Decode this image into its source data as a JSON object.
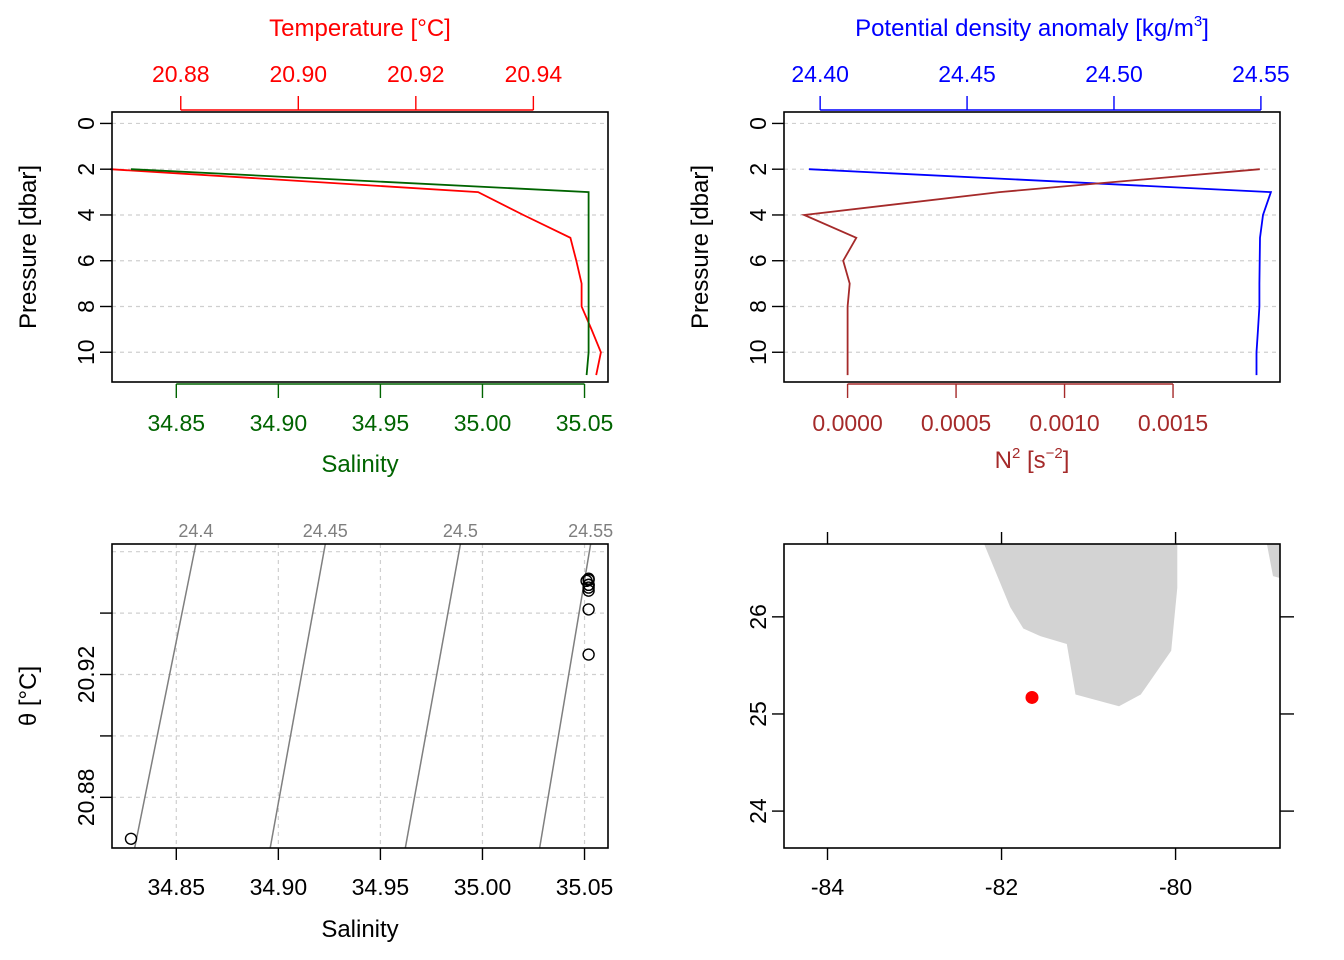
{
  "colors": {
    "temperature": "#ff0000",
    "salinity": "#006400",
    "density": "#0000ff",
    "n2": "#a52a2a",
    "isopycnal": "#7f7f7f",
    "land": "#d3d3d3",
    "station": "#ff0000"
  },
  "chart_data": [
    {
      "type": "line",
      "id": "temperature-salinity-profile",
      "ylabel": "Pressure [dbar]",
      "y_ticks": [
        "0",
        "2",
        "4",
        "6",
        "8",
        "10"
      ],
      "ylim": [
        11.3,
        -0.5
      ],
      "top_axis": {
        "label": "Temperature [°C]",
        "ticks": [
          "20.88",
          "20.90",
          "20.92",
          "20.94"
        ],
        "lim": [
          20.8683,
          20.9527
        ]
      },
      "bottom_axis": {
        "label": "Salinity",
        "ticks": [
          "34.85",
          "34.90",
          "34.95",
          "35.00",
          "35.05"
        ],
        "lim": [
          34.8185,
          35.0615
        ]
      },
      "series": [
        {
          "variable": "temperature",
          "axis": "top",
          "points": [
            [
              20.868,
              2.0
            ],
            [
              20.9306,
              3.0
            ],
            [
              20.9383,
              4.0
            ],
            [
              20.9463,
              5.0
            ],
            [
              20.9473,
              6.0
            ],
            [
              20.9482,
              7.0
            ],
            [
              20.9482,
              8.0
            ],
            [
              20.9499,
              9.0
            ],
            [
              20.9515,
              10.0
            ],
            [
              20.9507,
              11.0
            ]
          ]
        },
        {
          "variable": "salinity",
          "axis": "bottom",
          "points": [
            [
              34.8278,
              2.0
            ],
            [
              35.052,
              3.0
            ],
            [
              35.052,
              4.0
            ],
            [
              35.052,
              5.0
            ],
            [
              35.052,
              6.0
            ],
            [
              35.052,
              7.0
            ],
            [
              35.052,
              8.0
            ],
            [
              35.052,
              9.0
            ],
            [
              35.052,
              10.0
            ],
            [
              35.051,
              11.0
            ]
          ]
        }
      ]
    },
    {
      "type": "line",
      "id": "density-n2-profile",
      "ylabel": "Pressure [dbar]",
      "y_ticks": [
        "0",
        "2",
        "4",
        "6",
        "8",
        "10"
      ],
      "ylim": [
        11.3,
        -0.5
      ],
      "top_axis": {
        "label_main": "Potential density anomaly [kg/m",
        "label_sup": "3",
        "label_end": "]",
        "ticks": [
          "24.40",
          "24.45",
          "24.50",
          "24.55"
        ],
        "lim": [
          24.3877,
          24.5565
        ]
      },
      "bottom_axis": {
        "label_main": "N",
        "label_sup1": "2",
        "label_mid": " [s",
        "label_sup2": "−2",
        "label_end": "]",
        "ticks": [
          "0.0000",
          "0.0005",
          "0.0010",
          "0.0015"
        ],
        "lim": [
          -0.000293,
          0.001993
        ]
      },
      "series": [
        {
          "variable": "density",
          "axis": "top",
          "points": [
            [
              24.3962,
              2.0
            ],
            [
              24.5534,
              3.0
            ],
            [
              24.5507,
              4.0
            ],
            [
              24.5497,
              5.0
            ],
            [
              24.5496,
              6.0
            ],
            [
              24.5495,
              7.0
            ],
            [
              24.5495,
              8.0
            ],
            [
              24.549,
              9.0
            ],
            [
              24.5485,
              10.0
            ],
            [
              24.5485,
              11.0
            ]
          ]
        },
        {
          "variable": "N2",
          "axis": "bottom",
          "points": [
            [
              0.0019,
              2.0
            ],
            [
              0.0007,
              3.0
            ],
            [
              -0.0002,
              4.0
            ],
            [
              4e-05,
              5.0
            ],
            [
              -2e-05,
              6.0
            ],
            [
              1e-05,
              7.0
            ],
            [
              0.0,
              8.0
            ],
            [
              0.0,
              9.0
            ],
            [
              0.0,
              10.0
            ],
            [
              0.0,
              11.0
            ]
          ]
        }
      ]
    },
    {
      "type": "scatter",
      "id": "ts-diagram",
      "xlabel": "Salinity",
      "ylabel": "θ [°C]",
      "x_ticks": [
        "34.85",
        "34.90",
        "34.95",
        "35.00",
        "35.05"
      ],
      "y_ticks": [
        "20.88",
        "20.92"
      ],
      "xlim": [
        34.8185,
        35.0615
      ],
      "ylim": [
        20.8635,
        20.9625
      ],
      "isopycnals": [
        {
          "label": "24.4",
          "bottom_x": 34.8296,
          "top_x": 34.8596
        },
        {
          "label": "24.45",
          "bottom_x": 34.896,
          "top_x": 34.923
        },
        {
          "label": "24.5",
          "bottom_x": 34.9622,
          "top_x": 34.9892
        },
        {
          "label": "24.55",
          "bottom_x": 35.028,
          "top_x": 35.053
        }
      ],
      "points": [
        [
          34.8278,
          20.8665
        ],
        [
          35.052,
          20.9265
        ],
        [
          35.052,
          20.9412
        ],
        [
          35.052,
          20.9473
        ],
        [
          35.052,
          20.9483
        ],
        [
          35.052,
          20.9492
        ],
        [
          35.052,
          20.9492
        ],
        [
          35.052,
          20.9508
        ],
        [
          35.052,
          20.9512
        ],
        [
          35.051,
          20.9505
        ]
      ]
    },
    {
      "type": "map",
      "id": "station-map",
      "x_ticks": [
        "-84",
        "-82",
        "-80"
      ],
      "y_ticks": [
        "24",
        "25",
        "26"
      ],
      "xlim": [
        -84.5,
        -78.8
      ],
      "ylim": [
        23.62,
        26.75
      ],
      "land": [
        [
          [
            -82.2,
            26.75
          ],
          [
            -81.9,
            26.1
          ],
          [
            -81.75,
            25.88
          ],
          [
            -81.55,
            25.8
          ],
          [
            -81.25,
            25.72
          ],
          [
            -81.15,
            25.2
          ],
          [
            -80.65,
            25.08
          ],
          [
            -80.4,
            25.2
          ],
          [
            -80.05,
            25.65
          ],
          [
            -79.98,
            26.3
          ],
          [
            -79.98,
            26.75
          ]
        ],
        [
          [
            -78.95,
            26.75
          ],
          [
            -78.8,
            26.75
          ],
          [
            -78.8,
            26.4
          ],
          [
            -78.88,
            26.42
          ]
        ]
      ],
      "station": {
        "lon": -81.65,
        "lat": 25.17
      }
    }
  ]
}
